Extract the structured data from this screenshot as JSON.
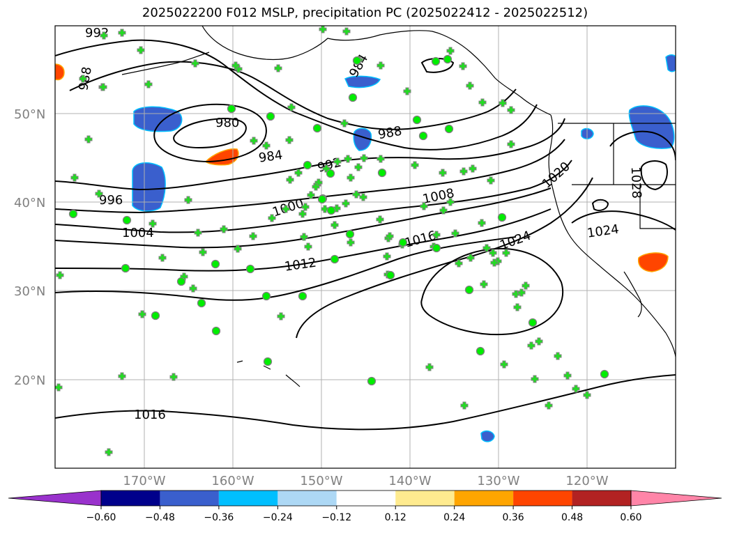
{
  "title": "2025022200 F012 MSLP, precipitation PC (2025022412 - 2025022512)",
  "lat_labels": [
    "50°N",
    "40°N",
    "30°N",
    "20°N"
  ],
  "lon_labels": [
    "170°W",
    "160°W",
    "150°W",
    "140°W",
    "130°W",
    "120°W"
  ],
  "isobars": {
    "labels": [
      "992",
      "988",
      "980",
      "984",
      "984",
      "988",
      "992",
      "996",
      "1000",
      "1004",
      "1008",
      "1012",
      "1016",
      "1020",
      "1024",
      "1024",
      "1028",
      "1016"
    ]
  },
  "colorbar": {
    "ticks": [
      "−0.60",
      "−0.48",
      "−0.36",
      "−0.24",
      "−0.12",
      "0.12",
      "0.24",
      "0.36",
      "0.48",
      "0.60"
    ],
    "colors": [
      "#9932cc",
      "#00008b",
      "#3a5fcd",
      "#00bfff",
      "#add8f5",
      "#ffffff",
      "#ffeb8f",
      "#ffa500",
      "#ff4500",
      "#b22222",
      "#ff85a8"
    ]
  },
  "markers": {
    "plus_color": "#22dd22",
    "circle_color": "#00ee00",
    "circle_edge": "#808080"
  }
}
